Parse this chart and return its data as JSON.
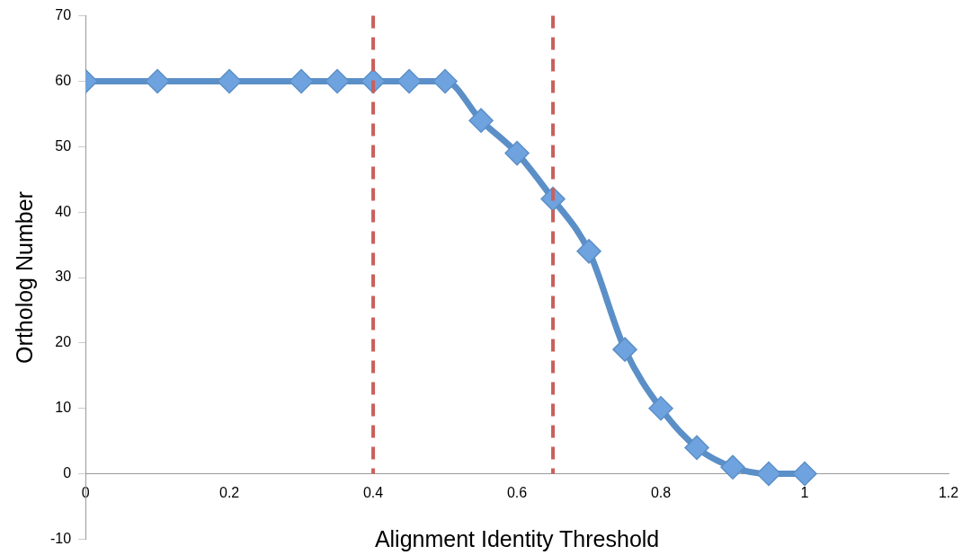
{
  "chart_data": {
    "type": "line",
    "xlabel": "Alignment Identity Threshold",
    "ylabel": "Ortholog Number",
    "x": [
      0,
      0.1,
      0.2,
      0.3,
      0.35,
      0.4,
      0.45,
      0.5,
      0.55,
      0.6,
      0.65,
      0.7,
      0.75,
      0.8,
      0.85,
      0.9,
      0.95,
      1
    ],
    "series": [
      {
        "color": "#5b8fc7",
        "values": [
          60,
          60,
          60,
          60,
          60,
          60,
          60,
          60,
          54,
          49,
          42,
          34,
          19,
          10,
          4,
          1,
          0,
          0
        ]
      }
    ],
    "xlim": [
      0,
      1.2
    ],
    "xticks": [
      0,
      0.2,
      0.4,
      0.6,
      0.8,
      1,
      1.2
    ],
    "ylim": [
      -10,
      70
    ],
    "yticks": [
      -10,
      0,
      10,
      20,
      30,
      40,
      50,
      60,
      70
    ],
    "ref_lines": [
      {
        "axis": "x",
        "value": 0.4,
        "color": "#c9605c",
        "line_style": "dashed"
      },
      {
        "axis": "x",
        "value": 0.65,
        "color": "#c9605c",
        "line_style": "dashed"
      }
    ],
    "marker": "diamond",
    "grid": false,
    "legend": false
  }
}
